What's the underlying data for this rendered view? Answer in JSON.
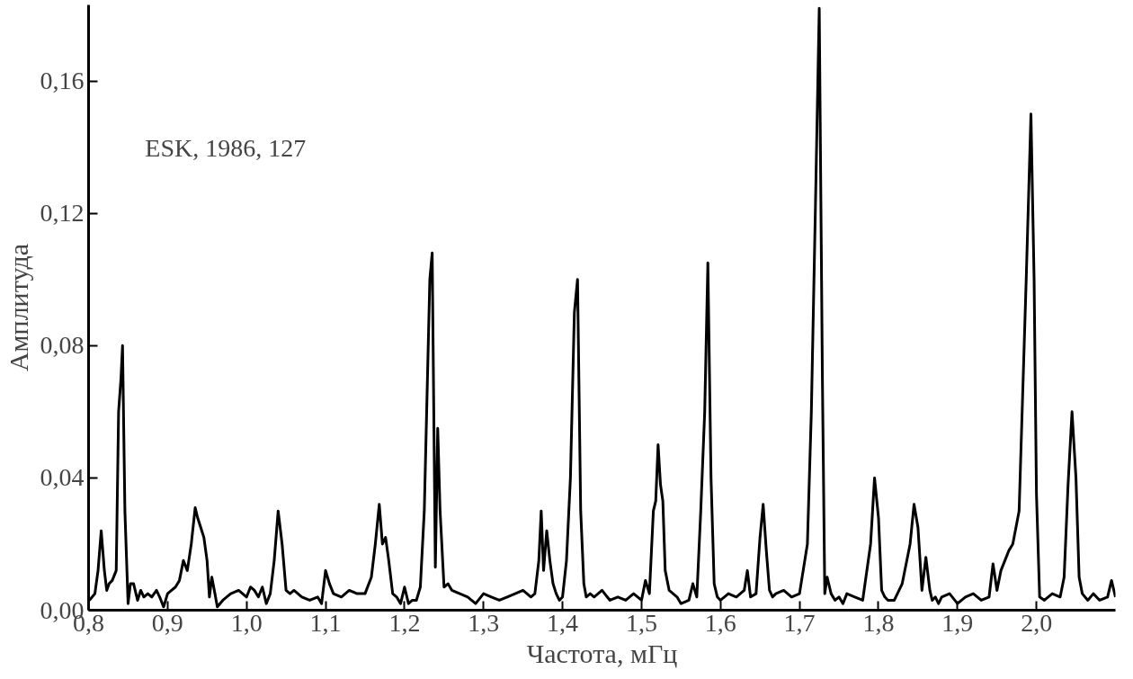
{
  "chart_data": {
    "type": "line",
    "xlabel": "Частота, мГц",
    "ylabel": "Амплитуда",
    "annotations": [
      "ESK, 1986, 127"
    ],
    "xlim": [
      0.8,
      2.1
    ],
    "ylim": [
      0,
      0.183
    ],
    "xticks": [
      {
        "value": 0.8,
        "label": "0,8"
      },
      {
        "value": 0.9,
        "label": "0,9"
      },
      {
        "value": 1.0,
        "label": "1,0"
      },
      {
        "value": 1.1,
        "label": "1,1"
      },
      {
        "value": 1.2,
        "label": "1,2"
      },
      {
        "value": 1.3,
        "label": "1,3"
      },
      {
        "value": 1.4,
        "label": "1,4"
      },
      {
        "value": 1.5,
        "label": "1,5"
      },
      {
        "value": 1.6,
        "label": "1,6"
      },
      {
        "value": 1.7,
        "label": "1,7"
      },
      {
        "value": 1.8,
        "label": "1,8"
      },
      {
        "value": 1.9,
        "label": "1,9"
      },
      {
        "value": 2.0,
        "label": "2,0"
      }
    ],
    "yticks": [
      {
        "value": 0,
        "label": "0,00"
      },
      {
        "value": 0.04,
        "label": "0,04"
      },
      {
        "value": 0.08,
        "label": "0,08"
      },
      {
        "value": 0.12,
        "label": "0,12"
      },
      {
        "value": 0.16,
        "label": "0,16"
      }
    ],
    "grid": false,
    "marker": "none",
    "line_style": "solid",
    "series": [
      {
        "color": "#000000",
        "x": [
          0.801,
          0.808,
          0.812,
          0.816,
          0.82,
          0.823,
          0.826,
          0.83,
          0.835,
          0.838,
          0.841,
          0.843,
          0.846,
          0.85,
          0.853,
          0.857,
          0.862,
          0.866,
          0.87,
          0.875,
          0.88,
          0.886,
          0.89,
          0.895,
          0.9,
          0.905,
          0.91,
          0.915,
          0.92,
          0.925,
          0.93,
          0.935,
          0.938,
          0.942,
          0.946,
          0.95,
          0.953,
          0.956,
          0.96,
          0.963,
          0.97,
          0.98,
          0.99,
          1.0,
          1.005,
          1.01,
          1.015,
          1.02,
          1.025,
          1.03,
          1.035,
          1.04,
          1.045,
          1.05,
          1.055,
          1.06,
          1.07,
          1.08,
          1.09,
          1.095,
          1.1,
          1.105,
          1.11,
          1.12,
          1.13,
          1.14,
          1.15,
          1.158,
          1.163,
          1.168,
          1.172,
          1.176,
          1.18,
          1.185,
          1.19,
          1.195,
          1.2,
          1.205,
          1.21,
          1.215,
          1.22,
          1.225,
          1.228,
          1.232,
          1.235,
          1.239,
          1.242,
          1.245,
          1.25,
          1.255,
          1.26,
          1.27,
          1.28,
          1.29,
          1.3,
          1.31,
          1.32,
          1.33,
          1.34,
          1.35,
          1.36,
          1.365,
          1.37,
          1.373,
          1.376,
          1.38,
          1.384,
          1.388,
          1.392,
          1.396,
          1.4,
          1.405,
          1.41,
          1.415,
          1.419,
          1.423,
          1.427,
          1.43,
          1.435,
          1.44,
          1.45,
          1.46,
          1.47,
          1.48,
          1.49,
          1.5,
          1.505,
          1.51,
          1.515,
          1.518,
          1.521,
          1.524,
          1.527,
          1.53,
          1.535,
          1.54,
          1.545,
          1.55,
          1.56,
          1.565,
          1.57,
          1.575,
          1.58,
          1.584,
          1.588,
          1.592,
          1.596,
          1.6,
          1.61,
          1.62,
          1.63,
          1.634,
          1.638,
          1.645,
          1.65,
          1.654,
          1.658,
          1.662,
          1.666,
          1.67,
          1.68,
          1.69,
          1.7,
          1.71,
          1.715,
          1.72,
          1.725,
          1.729,
          1.732,
          1.735,
          1.74,
          1.745,
          1.75,
          1.755,
          1.76,
          1.77,
          1.78,
          1.79,
          1.795,
          1.8,
          1.804,
          1.808,
          1.812,
          1.82,
          1.83,
          1.84,
          1.845,
          1.85,
          1.855,
          1.86,
          1.865,
          1.868,
          1.872,
          1.876,
          1.88,
          1.89,
          1.9,
          1.91,
          1.92,
          1.93,
          1.94,
          1.945,
          1.95,
          1.955,
          1.96,
          1.965,
          1.97,
          1.978,
          1.987,
          1.993,
          1.997,
          2.0,
          2.004,
          2.01,
          2.02,
          2.03,
          2.035,
          2.04,
          2.045,
          2.05,
          2.054,
          2.058,
          2.065,
          2.072,
          2.08,
          2.09,
          2.095,
          2.1
        ],
        "values": [
          0.003,
          0.005,
          0.012,
          0.024,
          0.012,
          0.006,
          0.008,
          0.009,
          0.012,
          0.06,
          0.07,
          0.08,
          0.03,
          0.002,
          0.008,
          0.008,
          0.003,
          0.006,
          0.004,
          0.005,
          0.004,
          0.006,
          0.004,
          0.001,
          0.005,
          0.006,
          0.007,
          0.009,
          0.015,
          0.012,
          0.02,
          0.031,
          0.028,
          0.025,
          0.022,
          0.015,
          0.004,
          0.01,
          0.005,
          0.001,
          0.003,
          0.005,
          0.006,
          0.004,
          0.007,
          0.006,
          0.004,
          0.007,
          0.002,
          0.005,
          0.015,
          0.03,
          0.02,
          0.006,
          0.005,
          0.006,
          0.004,
          0.003,
          0.004,
          0.002,
          0.012,
          0.008,
          0.005,
          0.004,
          0.006,
          0.005,
          0.005,
          0.01,
          0.02,
          0.032,
          0.02,
          0.022,
          0.015,
          0.005,
          0.004,
          0.002,
          0.007,
          0.002,
          0.003,
          0.003,
          0.007,
          0.03,
          0.06,
          0.1,
          0.108,
          0.013,
          0.055,
          0.03,
          0.007,
          0.008,
          0.006,
          0.005,
          0.004,
          0.002,
          0.005,
          0.004,
          0.003,
          0.004,
          0.005,
          0.006,
          0.004,
          0.005,
          0.015,
          0.03,
          0.012,
          0.024,
          0.015,
          0.008,
          0.005,
          0.003,
          0.004,
          0.015,
          0.04,
          0.09,
          0.1,
          0.03,
          0.008,
          0.004,
          0.005,
          0.004,
          0.006,
          0.003,
          0.004,
          0.003,
          0.005,
          0.003,
          0.009,
          0.005,
          0.03,
          0.033,
          0.05,
          0.038,
          0.033,
          0.012,
          0.006,
          0.005,
          0.004,
          0.002,
          0.003,
          0.008,
          0.004,
          0.03,
          0.06,
          0.105,
          0.04,
          0.008,
          0.004,
          0.003,
          0.005,
          0.004,
          0.006,
          0.012,
          0.004,
          0.005,
          0.022,
          0.032,
          0.018,
          0.006,
          0.004,
          0.005,
          0.006,
          0.004,
          0.005,
          0.02,
          0.06,
          0.12,
          0.182,
          0.07,
          0.005,
          0.01,
          0.005,
          0.003,
          0.004,
          0.002,
          0.005,
          0.004,
          0.003,
          0.02,
          0.04,
          0.028,
          0.006,
          0.004,
          0.003,
          0.003,
          0.008,
          0.02,
          0.032,
          0.025,
          0.006,
          0.016,
          0.006,
          0.003,
          0.004,
          0.002,
          0.004,
          0.005,
          0.002,
          0.004,
          0.005,
          0.003,
          0.004,
          0.014,
          0.006,
          0.012,
          0.015,
          0.018,
          0.02,
          0.03,
          0.1,
          0.15,
          0.1,
          0.035,
          0.004,
          0.003,
          0.005,
          0.004,
          0.01,
          0.038,
          0.06,
          0.04,
          0.01,
          0.005,
          0.003,
          0.005,
          0.003,
          0.004,
          0.009,
          0.004
        ]
      }
    ]
  }
}
